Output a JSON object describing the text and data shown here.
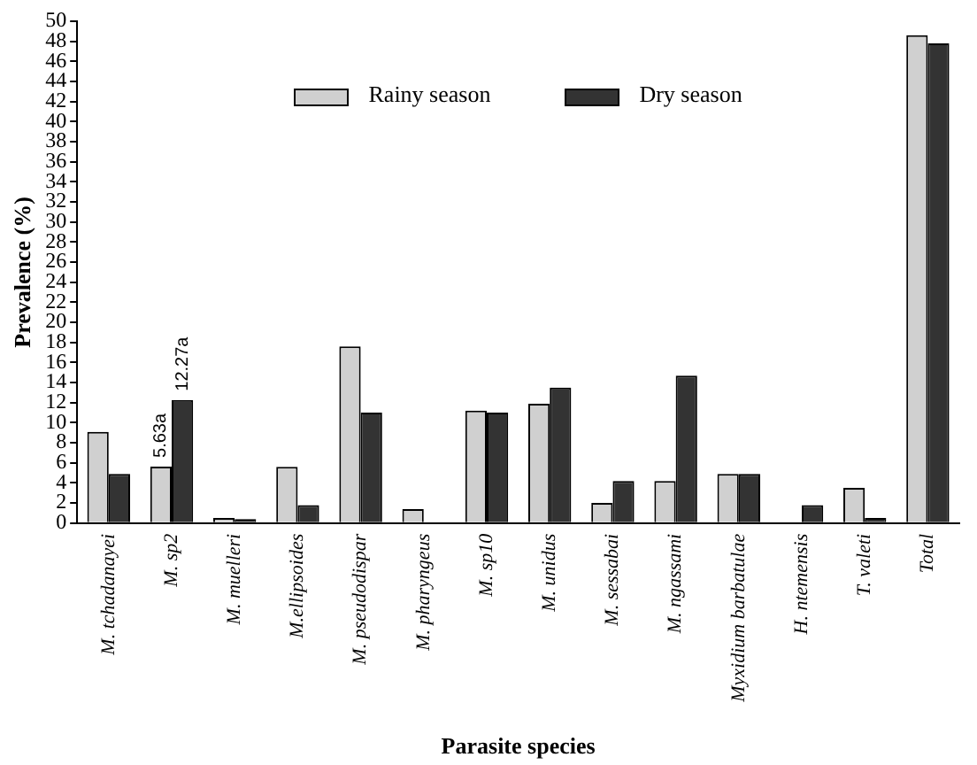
{
  "chart_data": {
    "type": "bar",
    "xlabel": "Parasite species",
    "ylabel": "Prevalence (%)",
    "legend": "top",
    "categories": [
      "M. tchadanayei",
      "M. sp2",
      "M. muelleri",
      "M.ellipsoides",
      "M. pseudodispar",
      "M. pharyngeus",
      "M. sp10",
      "M. unidus",
      "M. sessabai",
      "M. ngassami",
      "Myxidium barbatulae",
      "H. ntemensis",
      "T. valeti",
      "Total"
    ],
    "series": [
      {
        "name": "Rainy season",
        "color": "#d0d0d0",
        "values": [
          9.1,
          5.63,
          0.5,
          5.6,
          17.6,
          1.4,
          11.2,
          11.9,
          2.0,
          4.2,
          4.9,
          null,
          3.5,
          48.6
        ],
        "value_labels": [
          null,
          "5.63a",
          null,
          null,
          null,
          null,
          null,
          null,
          null,
          null,
          null,
          null,
          null,
          null
        ]
      },
      {
        "name": "Dry season",
        "color": "#333333",
        "values": [
          4.9,
          12.27,
          0.4,
          1.8,
          11.0,
          null,
          11.0,
          13.5,
          4.2,
          14.7,
          4.9,
          1.8,
          0.5,
          47.8
        ],
        "value_labels": [
          null,
          "12.27a",
          null,
          null,
          null,
          null,
          null,
          null,
          null,
          null,
          null,
          null,
          null,
          null
        ]
      }
    ],
    "ylim": [
      0,
      50
    ],
    "yticks": [
      0,
      2,
      4,
      6,
      8,
      10,
      12,
      14,
      16,
      18,
      20,
      22,
      24,
      26,
      28,
      30,
      32,
      34,
      36,
      38,
      40,
      42,
      44,
      46,
      48,
      50
    ]
  }
}
